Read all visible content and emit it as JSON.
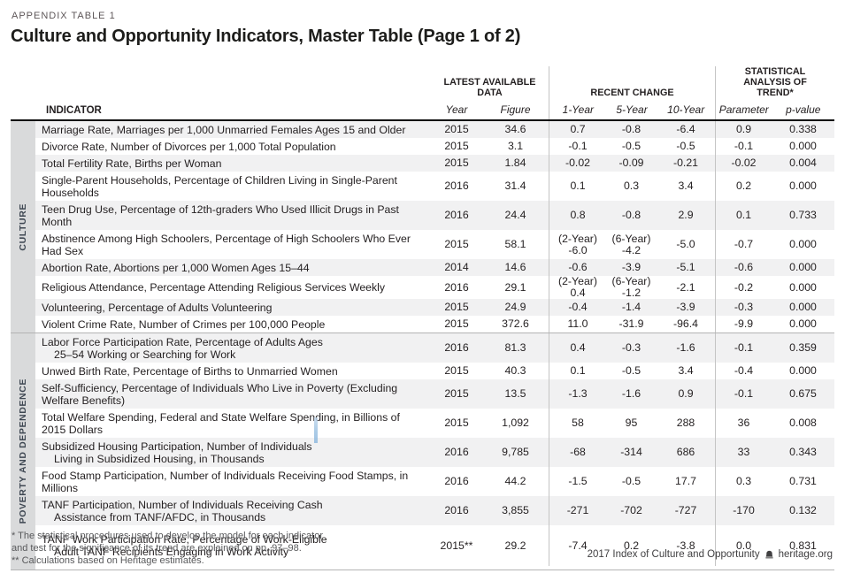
{
  "eyebrow": "APPENDIX TABLE 1",
  "title": "Culture and Opportunity Indicators, Master Table (Page 1 of 2)",
  "colors": {
    "stripe": "#f1f1f2",
    "band_background": "#d9dadb",
    "band_text": "#3e4752",
    "header_rule": "#0a0a0a",
    "gray_rule": "#b3b3b3",
    "column_divider": "#c4c4c4",
    "footnote_text": "#58595b",
    "cursor_blue": "#9cc2e2"
  },
  "header": {
    "indicator_label": "INDICATOR",
    "groups": {
      "latest": {
        "label": "LATEST AVAILABLE\nDATA",
        "subs": [
          "Year",
          "Figure"
        ]
      },
      "recent": {
        "label": "RECENT CHANGE",
        "subs": [
          "1-Year",
          "5-Year",
          "10-Year"
        ]
      },
      "trend": {
        "label": "STATISTICAL\nANALYSIS OF\nTREND*",
        "subs": [
          "Parameter",
          "p-value"
        ]
      }
    }
  },
  "table": {
    "sections": [
      {
        "id": "culture",
        "label": "CULTURE",
        "rows": [
          {
            "indicator": "Marriage Rate, Marriages per 1,000 Unmarried Females Ages 15 and Older",
            "cells": [
              "2015",
              "34.6",
              "0.7",
              "-0.8",
              "-6.4",
              "0.9",
              "0.338"
            ]
          },
          {
            "indicator": "Divorce Rate, Number of Divorces per 1,000 Total Population",
            "cells": [
              "2015",
              "3.1",
              "-0.1",
              "-0.5",
              "-0.5",
              "-0.1",
              "0.000"
            ]
          },
          {
            "indicator": "Total Fertility Rate, Births per Woman",
            "cells": [
              "2015",
              "1.84",
              "-0.02",
              "-0.09",
              "-0.21",
              "-0.02",
              "0.004"
            ]
          },
          {
            "indicator": "Single-Parent Households, Percentage of Children Living in Single-Parent Households",
            "cells": [
              "2016",
              "31.4",
              "0.1",
              "0.3",
              "3.4",
              "0.2",
              "0.000"
            ]
          },
          {
            "indicator": "Teen Drug Use, Percentage of 12th-graders Who Used Illicit Drugs in Past Month",
            "cells": [
              "2016",
              "24.4",
              "0.8",
              "-0.8",
              "2.9",
              "0.1",
              "0.733"
            ]
          },
          {
            "indicator": "Abstinence Among High Schoolers, Percentage of High Schoolers Who Ever Had Sex",
            "cells": [
              "2015",
              "58.1",
              "(2-Year)\n-6.0",
              "(6-Year)\n-4.2",
              "-5.0",
              "-0.7",
              "0.000"
            ]
          },
          {
            "indicator": "Abortion Rate, Abortions per 1,000 Women Ages 15–44",
            "cells": [
              "2014",
              "14.6",
              "-0.6",
              "-3.9",
              "-5.1",
              "-0.6",
              "0.000"
            ]
          },
          {
            "indicator": "Religious Attendance, Percentage Attending Religious Services Weekly",
            "cells": [
              "2016",
              "29.1",
              "(2-Year)\n0.4",
              "(6-Year)\n-1.2",
              "-2.1",
              "-0.2",
              "0.000"
            ]
          },
          {
            "indicator": "Volunteering, Percentage of Adults Volunteering",
            "cells": [
              "2015",
              "24.9",
              "-0.4",
              "-1.4",
              "-3.9",
              "-0.3",
              "0.000"
            ]
          },
          {
            "indicator": "Violent Crime Rate, Number of Crimes per 100,000 People",
            "cells": [
              "2015",
              "372.6",
              "11.0",
              "-31.9",
              "-96.4",
              "-9.9",
              "0.000"
            ]
          }
        ]
      },
      {
        "id": "poverty-and-dependence",
        "label": "POVERTY AND DEPENDENCE",
        "rows": [
          {
            "indicator": "Labor Force Participation Rate, Percentage of Adults Ages",
            "indicator2": "25–54 Working or Searching for Work",
            "cells": [
              "2016",
              "81.3",
              "0.4",
              "-0.3",
              "-1.6",
              "-0.1",
              "0.359"
            ]
          },
          {
            "indicator": "Unwed Birth Rate, Percentage of Births to Unmarried Women",
            "cells": [
              "2015",
              "40.3",
              "0.1",
              "-0.5",
              "3.4",
              "-0.4",
              "0.000"
            ]
          },
          {
            "indicator": "Self-Sufficiency, Percentage of Individuals Who Live in Poverty (Excluding Welfare Benefits)",
            "cells": [
              "2015",
              "13.5",
              "-1.3",
              "-1.6",
              "0.9",
              "-0.1",
              "0.675"
            ]
          },
          {
            "indicator": "Total Welfare Spending, Federal and State Welfare Spending, in Billions of 2015 Dollars",
            "cells": [
              "2015",
              "1,092",
              "58",
              "95",
              "288",
              "36",
              "0.008"
            ]
          },
          {
            "indicator": "Subsidized Housing Participation, Number of Individuals",
            "indicator2": "Living in Subsidized Housing, in Thousands",
            "cells": [
              "2016",
              "9,785",
              "-68",
              "-314",
              "686",
              "33",
              "0.343"
            ]
          },
          {
            "indicator": "Food Stamp Participation, Number of Individuals Receiving Food Stamps, in Millions",
            "cells": [
              "2016",
              "44.2",
              "-1.5",
              "-0.5",
              "17.7",
              "0.3",
              "0.731"
            ]
          },
          {
            "indicator": "TANF Participation, Number of Individuals Receiving Cash",
            "indicator2": "Assistance from TANF/AFDC, in Thousands",
            "cells": [
              "2016",
              "3,855",
              "-271",
              "-702",
              "-727",
              "-170",
              "0.132"
            ]
          },
          {
            "indicator": "TANF Work Participation Rate, Percentage of Work-Eligible",
            "indicator2": "Adult TANF Recipients Engaging in Work Activity",
            "cells": [
              "2015**",
              "29.2",
              "-7.4",
              "0.2",
              "-3.8",
              "0.0",
              "0.831"
            ]
          }
        ]
      }
    ]
  },
  "footnotes": [
    "* The statistical procedures used to develop the model for each indicator",
    "and test for the significance of its trend are explained on pp. 97–98.",
    "** Calculations based on Heritage estimates."
  ],
  "footer_right": {
    "text": "2017 Index of Culture and Opportunity",
    "site": "heritage.org"
  }
}
